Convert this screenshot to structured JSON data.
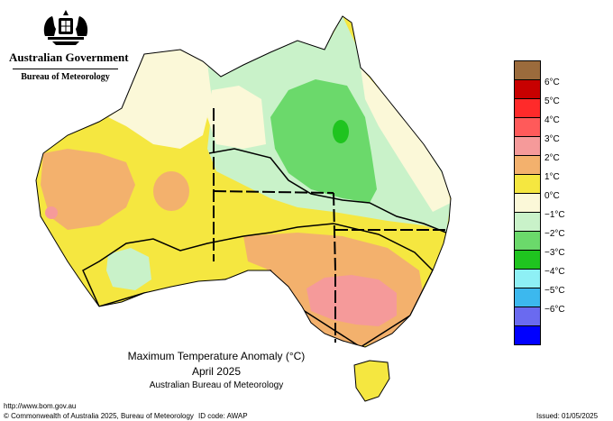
{
  "header": {
    "government": "Australian Government",
    "agency": "Bureau of Meteorology"
  },
  "title": {
    "line1": "Maximum Temperature Anomaly (°C)",
    "line2": "April 2025",
    "line3": "Australian Bureau of Meteorology"
  },
  "legend": {
    "items": [
      {
        "color": "#9b6b3c",
        "label": ""
      },
      {
        "color": "#c80000",
        "label": "6°C"
      },
      {
        "color": "#ff2a2a",
        "label": "5°C"
      },
      {
        "color": "#ff5a5a",
        "label": "4°C"
      },
      {
        "color": "#f59a9a",
        "label": "3°C"
      },
      {
        "color": "#f3b16d",
        "label": "2°C"
      },
      {
        "color": "#f5e740",
        "label": "1°C"
      },
      {
        "color": "#fbf8d8",
        "label": "0°C"
      },
      {
        "color": "#c9f2c9",
        "label": "−1°C"
      },
      {
        "color": "#6bd96b",
        "label": "−2°C"
      },
      {
        "color": "#1fc41f",
        "label": "−3°C"
      },
      {
        "color": "#8ef0f5",
        "label": "−4°C"
      },
      {
        "color": "#3cb8ee",
        "label": "−5°C"
      },
      {
        "color": "#6a6af0",
        "label": "−6°C"
      },
      {
        "color": "#0000ff",
        "label": ""
      }
    ]
  },
  "footer": {
    "url": "http://www.bom.gov.au",
    "copyright": "© Commonwealth of Australia 2025, Bureau of Meteorology",
    "id_code": "ID code: AWAP",
    "issued": "Issued: 01/05/2025"
  },
  "map": {
    "colors": {
      "yellow": "#f5e740",
      "cream": "#fbf8d8",
      "lightgreen": "#c9f2c9",
      "green": "#6bd96b",
      "darkgreen": "#1fc41f",
      "orange": "#f3b16d",
      "pink": "#f59a9a"
    }
  }
}
